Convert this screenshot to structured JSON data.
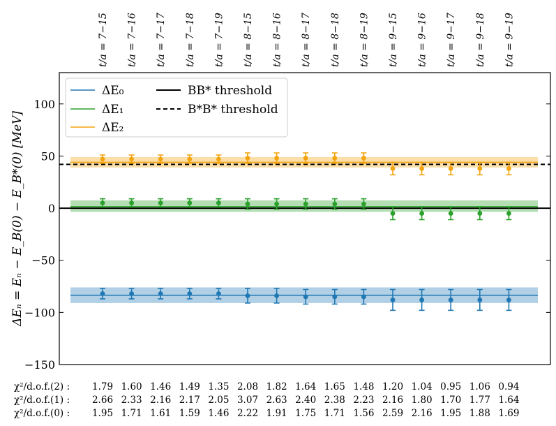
{
  "chart_data": {
    "type": "scatter",
    "ylabel": "ΔEₙ = Eₙ − E_B(0) − E_B*(0) [MeV]",
    "ylim": [
      -150,
      130
    ],
    "yticks": [
      -150,
      -100,
      -50,
      0,
      50,
      100
    ],
    "ytick_labels": [
      "−150",
      "−100",
      "−50",
      "0",
      "50",
      "100"
    ],
    "categories": [
      "t/a = 7−15",
      "t/a = 7−16",
      "t/a = 7−17",
      "t/a = 7−18",
      "t/a = 7−19",
      "t/a = 8−15",
      "t/a = 8−16",
      "t/a = 8−17",
      "t/a = 8−18",
      "t/a = 8−19",
      "t/a = 9−15",
      "t/a = 9−16",
      "t/a = 9−17",
      "t/a = 9−18",
      "t/a = 9−19"
    ],
    "series": [
      {
        "name": "ΔE₀",
        "color": "#1f77b4",
        "values": [
          -82,
          -82,
          -82,
          -82,
          -82,
          -84,
          -84,
          -85,
          -85,
          -85,
          -88,
          -88,
          -88,
          -88,
          -88
        ],
        "errors": [
          5,
          5,
          5,
          5,
          5,
          7,
          7,
          7,
          7,
          7,
          10,
          10,
          10,
          10,
          10
        ],
        "band": {
          "center": -83.5,
          "low": -91,
          "high": -76
        }
      },
      {
        "name": "ΔE₁",
        "color": "#2ca02c",
        "values": [
          5,
          5,
          5,
          5,
          5,
          4,
          4,
          4,
          4,
          4,
          -5,
          -5,
          -5,
          -5,
          -5
        ],
        "errors": [
          4,
          4,
          4,
          4,
          4,
          5,
          5,
          5,
          5,
          5,
          6,
          6,
          6,
          6,
          6
        ],
        "band": {
          "center": 1.5,
          "low": -3.5,
          "high": 7.5
        }
      },
      {
        "name": "ΔE₂",
        "color": "#f4a40f",
        "values": [
          47,
          47,
          47,
          47,
          47,
          48,
          48,
          48,
          48,
          48,
          38,
          38,
          38,
          38,
          38
        ],
        "errors": [
          4,
          4,
          4,
          4,
          4,
          5,
          5,
          5,
          5,
          5,
          6,
          6,
          6,
          6,
          6
        ],
        "band": {
          "center": 44,
          "low": 39,
          "high": 49
        }
      }
    ],
    "thresholds": [
      {
        "name": "BB* threshold",
        "value": 0,
        "style": "solid"
      },
      {
        "name": "B*B* threshold",
        "value": 42,
        "style": "dashed"
      }
    ],
    "legend_placement": "top-left"
  },
  "legend": {
    "e0": "ΔE₀",
    "e1": "ΔE₁",
    "e2": "ΔE₂",
    "bb": "BB* threshold",
    "bsbs": "B*B* threshold"
  },
  "chi2": {
    "label_2": "χ²/d.o.f.(2) :",
    "label_1": "χ²/d.o.f.(1) :",
    "label_0": "χ²/d.o.f.(0) :",
    "row_2": [
      "1.79",
      "1.60",
      "1.46",
      "1.49",
      "1.35",
      "2.08",
      "1.82",
      "1.64",
      "1.65",
      "1.48",
      "1.20",
      "1.04",
      "0.95",
      "1.06",
      "0.94"
    ],
    "row_1": [
      "2.66",
      "2.33",
      "2.16",
      "2.17",
      "2.05",
      "3.07",
      "2.63",
      "2.40",
      "2.38",
      "2.23",
      "2.16",
      "1.80",
      "1.70",
      "1.77",
      "1.64"
    ],
    "row_0": [
      "1.95",
      "1.71",
      "1.61",
      "1.59",
      "1.46",
      "2.22",
      "1.91",
      "1.75",
      "1.71",
      "1.56",
      "2.59",
      "2.16",
      "1.95",
      "1.88",
      "1.69"
    ]
  }
}
